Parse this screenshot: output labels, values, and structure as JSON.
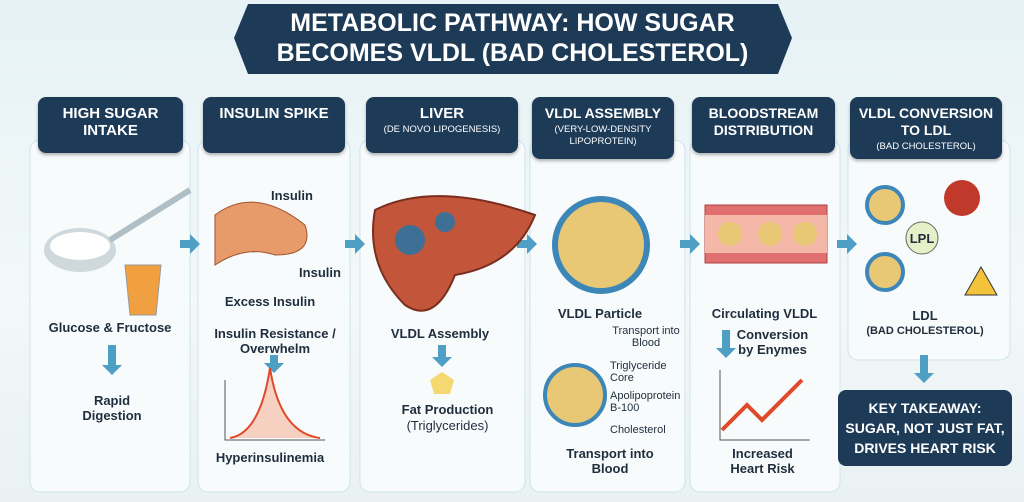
{
  "title": {
    "lines": [
      "METABOLIC PATHWAY: HOW SUGAR",
      "BECOMES VLDL (BAD CHOLESTEROL)"
    ]
  },
  "columns": [
    {
      "header": "HIGH SUGAR INTAKE",
      "labels": [
        "Glucose & Fructose",
        "Rapid Digestion"
      ]
    },
    {
      "header": "INSULIN SPIKE",
      "labels": [
        "Insulin",
        "Insulin",
        "Excess Insulin",
        "Insulin Resistance / Overwhelm",
        "Hyperinsulinemia"
      ]
    },
    {
      "header": "LIVER",
      "subheader": "(DE NOVO LIPOGENESIS)",
      "labels": [
        "VLDL Assembly",
        "Fat Production",
        "(Triglycerides)"
      ]
    },
    {
      "header": "VLDL ASSEMBLY",
      "subheader": "(VERY-LOW-DENSITY LIPOPROTEIN)",
      "labels": [
        "VLDL Particle",
        "Transport into Blood",
        "Triglyceride Core",
        "Apolipoprotein B-100",
        "Cholesterol",
        "Transport into Blood"
      ]
    },
    {
      "header": "BLOODSTREAM DISTRIBUTION",
      "labels": [
        "Circulating VLDL",
        "Conversion by Enymes",
        "Increased Heart Risk"
      ]
    },
    {
      "header": "VLDL CONVERSION TO LDL",
      "subheader": "(BAD CHOLESTEROL)",
      "labels": [
        "LPL",
        "LDL",
        "(BAD CHOLESTEROL)"
      ]
    }
  ],
  "takeaway": {
    "text": "KEY TAKEAWAY: SUGAR, NOT JUST FAT, DRIVES HEART RISK"
  }
}
